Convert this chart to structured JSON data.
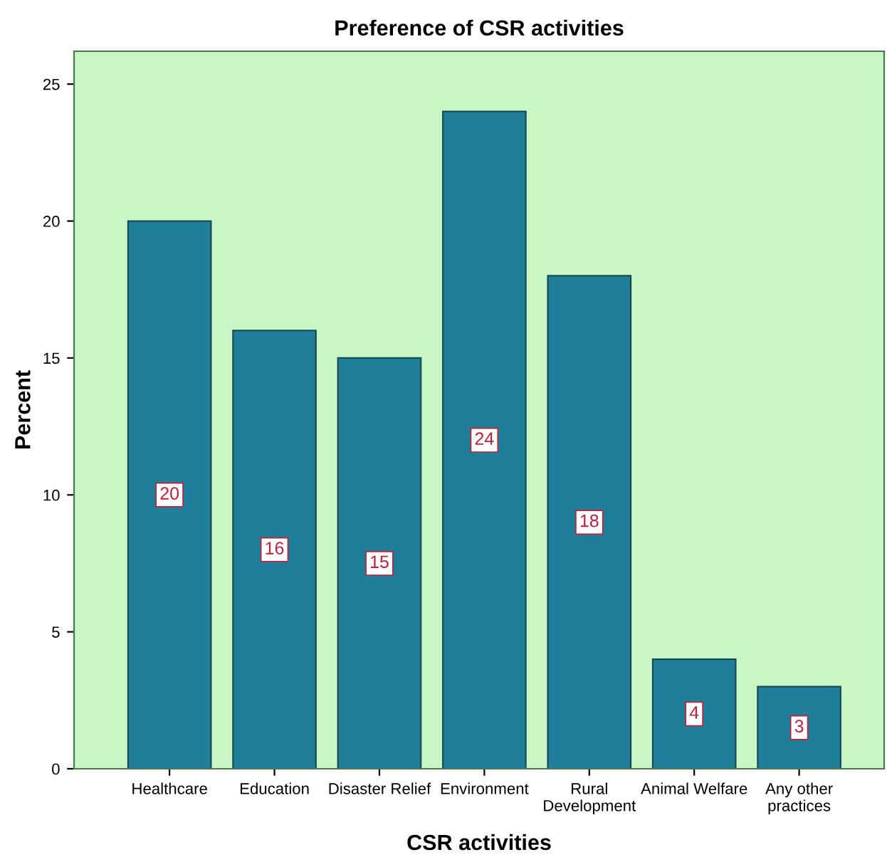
{
  "chart_data": {
    "type": "bar",
    "title": "Preference of CSR activities",
    "xlabel": "CSR activities",
    "ylabel": "Percent",
    "categories": [
      "Healthcare",
      "Education",
      "Disaster Relief",
      "Environment",
      "Rural\nDevelopment",
      "Animal Welfare",
      "Any other\npractices"
    ],
    "values": [
      20,
      16,
      15,
      24,
      18,
      4,
      3
    ],
    "color": "#1f7f9a",
    "ylim": [
      0,
      26.2
    ],
    "yticks": [
      0,
      5,
      10,
      15,
      20,
      25
    ],
    "grid": false,
    "data_labels": true
  }
}
